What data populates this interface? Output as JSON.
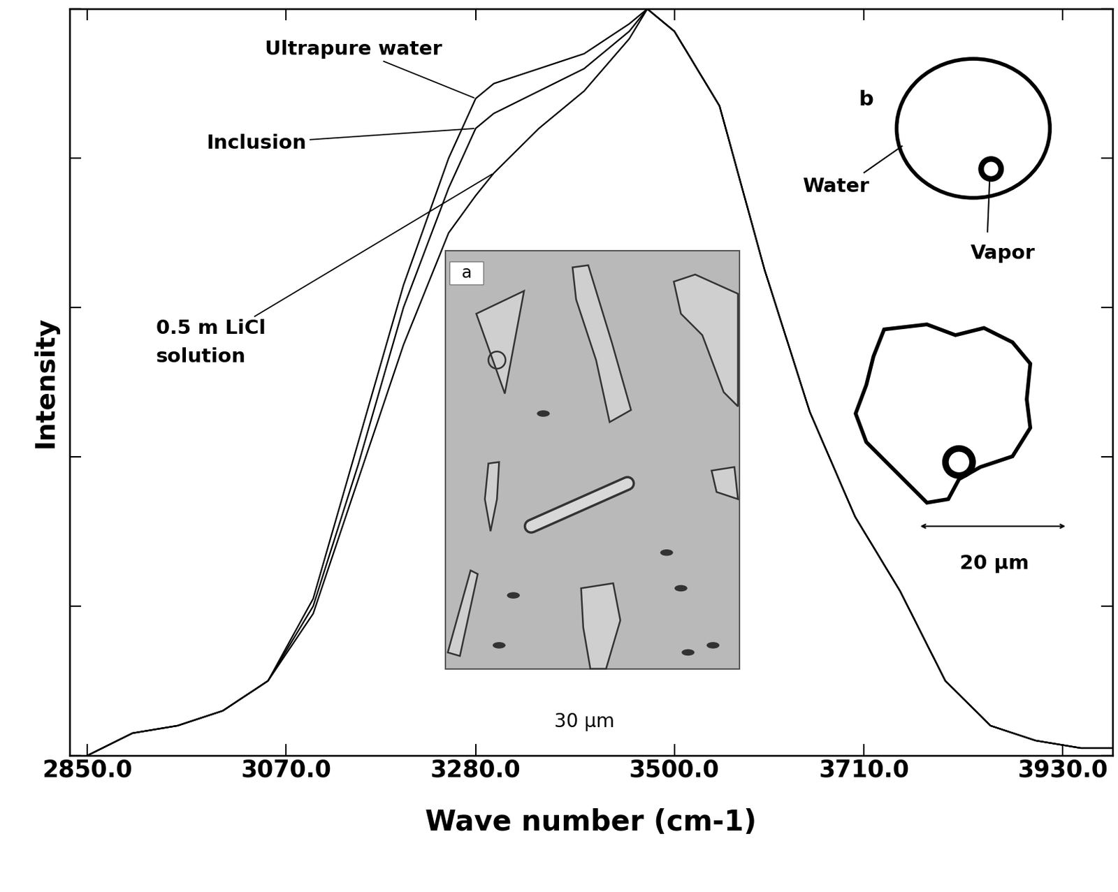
{
  "chart_data": {
    "type": "line",
    "x_label": "Wave number (cm-1)",
    "y_label": "Intensity",
    "x": [
      2850,
      2900,
      2950,
      3000,
      3050,
      3100,
      3150,
      3200,
      3250,
      3280,
      3300,
      3350,
      3400,
      3450,
      3470,
      3500,
      3550,
      3600,
      3650,
      3700,
      3750,
      3800,
      3850,
      3900,
      3950,
      3985
    ],
    "series": [
      {
        "name": "Ultrapure water",
        "color": "#000000",
        "values": [
          0.0,
          0.03,
          0.04,
          0.06,
          0.1,
          0.21,
          0.42,
          0.63,
          0.8,
          0.88,
          0.9,
          0.92,
          0.94,
          0.98,
          1.0,
          0.97,
          0.87,
          0.65,
          0.46,
          0.32,
          0.22,
          0.1,
          0.04,
          0.02,
          0.01,
          0.01
        ]
      },
      {
        "name": "Inclusion",
        "color": "#000000",
        "values": [
          0.0,
          0.03,
          0.04,
          0.06,
          0.1,
          0.2,
          0.39,
          0.6,
          0.76,
          0.84,
          0.86,
          0.89,
          0.92,
          0.97,
          1.0,
          0.97,
          0.87,
          0.65,
          0.46,
          0.32,
          0.22,
          0.1,
          0.04,
          0.02,
          0.01,
          0.01
        ]
      },
      {
        "name": "0.5 m LiCl solution",
        "color": "#000000",
        "values": [
          0.0,
          0.03,
          0.04,
          0.06,
          0.1,
          0.19,
          0.37,
          0.55,
          0.7,
          0.75,
          0.78,
          0.84,
          0.89,
          0.96,
          1.0,
          0.97,
          0.87,
          0.65,
          0.46,
          0.32,
          0.22,
          0.1,
          0.04,
          0.02,
          0.01,
          0.01
        ]
      }
    ],
    "xlim": [
      2830,
      3985
    ],
    "xticks": [
      {
        "value": 2850,
        "label": "2850.0"
      },
      {
        "value": 3070,
        "label": "3070.0"
      },
      {
        "value": 3280,
        "label": "3280.0"
      },
      {
        "value": 3500,
        "label": "3500.0"
      },
      {
        "value": 3710,
        "label": "3710.0"
      },
      {
        "value": 3930,
        "label": "3930.0"
      }
    ],
    "ylim": [
      0,
      1.0
    ],
    "yticks": [
      0,
      0.2,
      0.4,
      0.6,
      0.8,
      1.0
    ],
    "tick_labels": "x",
    "grid": false,
    "annotations": {
      "panel_a": "a",
      "panel_b": "b",
      "water": "Water",
      "vapor": "Vapor",
      "scale_a": "30 µm",
      "scale_b": "20 µm"
    }
  }
}
